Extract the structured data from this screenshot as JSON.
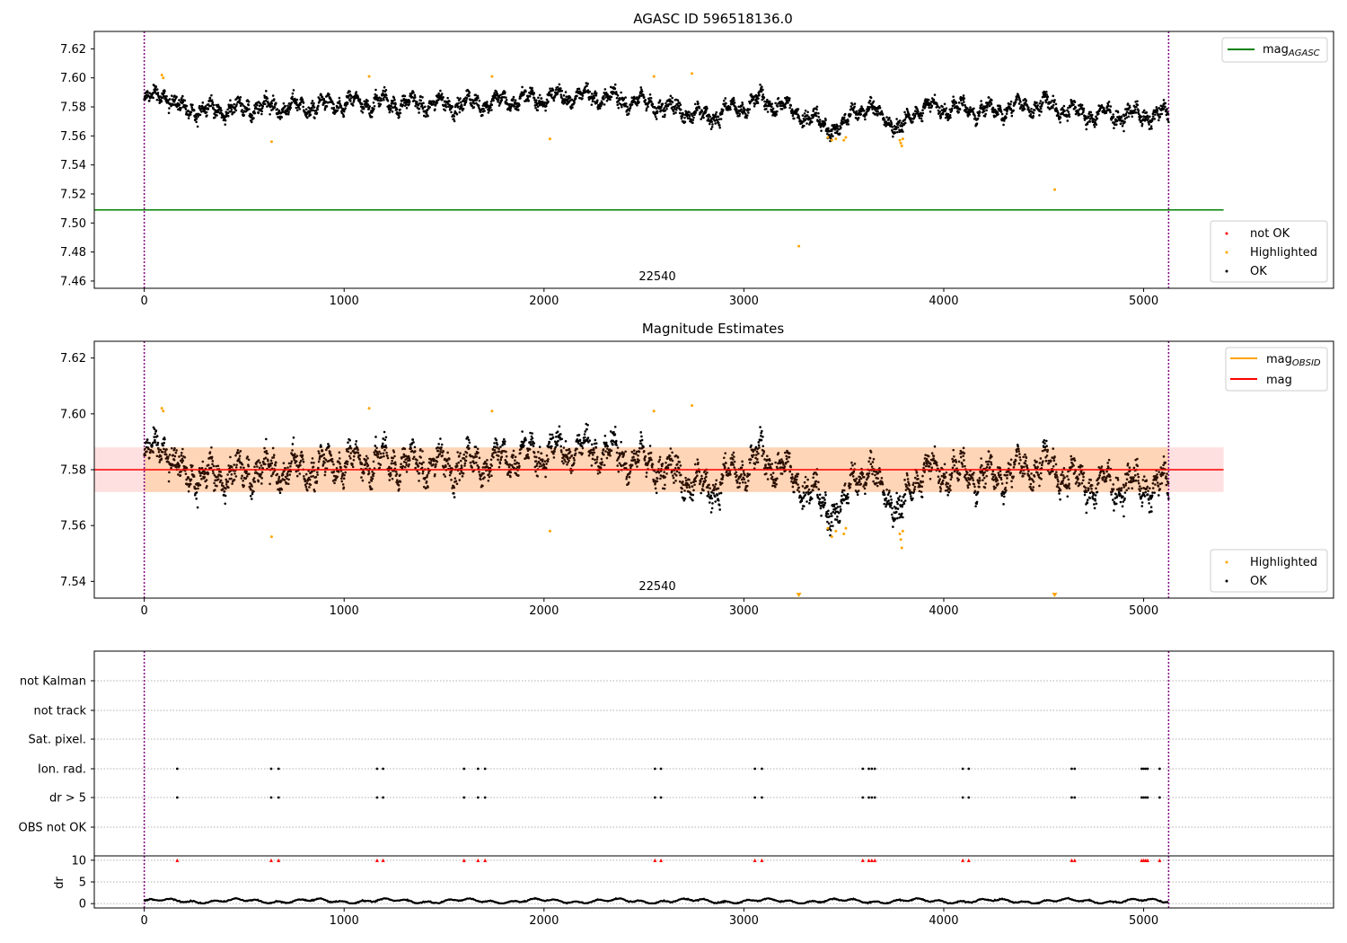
{
  "chart_data": [
    {
      "type": "scatter",
      "title": "AGASC ID 596518136.0",
      "xlim": [
        -250,
        5950
      ],
      "ylim": [
        7.455,
        7.632
      ],
      "x_ticks": [
        0,
        1000,
        2000,
        3000,
        4000,
        5000
      ],
      "y_ticks": [
        7.46,
        7.48,
        7.5,
        7.52,
        7.54,
        7.56,
        7.58,
        7.6,
        7.62
      ],
      "y_tick_labels": [
        "7.46",
        "7.48",
        "7.50",
        "7.52",
        "7.54",
        "7.56",
        "7.58",
        "7.60",
        "7.62"
      ],
      "vlines": [
        0,
        5125
      ],
      "hline": {
        "name": "mag_AGASC",
        "y": 7.509,
        "x_range": [
          -250,
          5400
        ],
        "color": "#008000"
      },
      "annotation": "22540",
      "line_legend": [
        {
          "label": "mag",
          "sub": "AGASC",
          "color": "#008000"
        }
      ],
      "marker_legend": [
        {
          "label": "not OK",
          "color": "#ff0000"
        },
        {
          "label": "Highlighted",
          "color": "#ffa500"
        },
        {
          "label": "OK",
          "color": "#000000"
        }
      ],
      "ok_series": {
        "name": "OK",
        "x_range": [
          0,
          5125
        ],
        "base": 7.58,
        "segments": [
          [
            0,
            7.583
          ],
          [
            100,
            7.59
          ],
          [
            180,
            7.578
          ],
          [
            400,
            7.578
          ],
          [
            600,
            7.58
          ],
          [
            800,
            7.58
          ],
          [
            1000,
            7.582
          ],
          [
            1200,
            7.583
          ],
          [
            1400,
            7.582
          ],
          [
            1600,
            7.582
          ],
          [
            1800,
            7.584
          ],
          [
            2000,
            7.586
          ],
          [
            2200,
            7.588
          ],
          [
            2500,
            7.583
          ],
          [
            2700,
            7.578
          ],
          [
            2800,
            7.573
          ],
          [
            3000,
            7.58
          ],
          [
            3100,
            7.585
          ],
          [
            3300,
            7.574
          ],
          [
            3400,
            7.568
          ],
          [
            3500,
            7.564
          ],
          [
            3550,
            7.58
          ],
          [
            3700,
            7.575
          ],
          [
            3780,
            7.562
          ],
          [
            3850,
            7.578
          ],
          [
            4000,
            7.58
          ],
          [
            4200,
            7.577
          ],
          [
            4500,
            7.582
          ],
          [
            4700,
            7.575
          ],
          [
            5125,
            7.574
          ]
        ],
        "spread": 0.008
      },
      "highlighted": [
        [
          88,
          7.602
        ],
        [
          95,
          7.6
        ],
        [
          637,
          7.556
        ],
        [
          1125,
          7.601
        ],
        [
          1740,
          7.601
        ],
        [
          2030,
          7.558
        ],
        [
          2550,
          7.601
        ],
        [
          2740,
          7.603
        ],
        [
          3275,
          7.484
        ],
        [
          3420,
          7.559
        ],
        [
          3440,
          7.557
        ],
        [
          3460,
          7.558
        ],
        [
          3500,
          7.557
        ],
        [
          3510,
          7.559
        ],
        [
          3780,
          7.557
        ],
        [
          3785,
          7.555
        ],
        [
          3790,
          7.553
        ],
        [
          3795,
          7.558
        ],
        [
          4555,
          7.523
        ]
      ]
    },
    {
      "type": "scatter",
      "title": "Magnitude Estimates",
      "xlim": [
        -250,
        5950
      ],
      "ylim": [
        7.534,
        7.626
      ],
      "x_ticks": [
        0,
        1000,
        2000,
        3000,
        4000,
        5000
      ],
      "y_ticks": [
        7.54,
        7.56,
        7.58,
        7.6,
        7.62
      ],
      "y_tick_labels": [
        "7.54",
        "7.56",
        "7.58",
        "7.60",
        "7.62"
      ],
      "vlines": [
        0,
        5125
      ],
      "mag": 7.58,
      "band": [
        7.572,
        7.588
      ],
      "annotation": "22540",
      "line_legend": [
        {
          "label": "mag",
          "sub": "OBSID",
          "color": "#ffa500"
        },
        {
          "label": "mag",
          "sub": "",
          "color": "#ff0000"
        }
      ],
      "marker_legend": [
        {
          "label": "Highlighted",
          "color": "#ffa500"
        },
        {
          "label": "OK",
          "color": "#000000"
        }
      ],
      "highlighted": [
        [
          88,
          7.602
        ],
        [
          95,
          7.601
        ],
        [
          637,
          7.556
        ],
        [
          1125,
          7.602
        ],
        [
          1740,
          7.601
        ],
        [
          2030,
          7.558
        ],
        [
          2550,
          7.601
        ],
        [
          2740,
          7.603
        ],
        [
          3420,
          7.559
        ],
        [
          3440,
          7.556
        ],
        [
          3460,
          7.558
        ],
        [
          3500,
          7.557
        ],
        [
          3510,
          7.559
        ],
        [
          3780,
          7.557
        ],
        [
          3785,
          7.555
        ],
        [
          3790,
          7.552
        ],
        [
          3795,
          7.558
        ]
      ],
      "offscale_markers": [
        3275,
        4555
      ]
    },
    {
      "type": "scatter",
      "title": "",
      "xlim": [
        -250,
        5950
      ],
      "x_ticks": [
        0,
        1000,
        2000,
        3000,
        4000,
        5000
      ],
      "vlines": [
        0,
        5125
      ],
      "flag_categories": [
        "not Kalman",
        "not track",
        "Sat. pixel.",
        "Ion. rad.",
        "dr > 5",
        "OBS not OK"
      ],
      "flag_x": [
        165,
        635,
        672,
        1165,
        1195,
        1600,
        1670,
        1705,
        2555,
        2585,
        3055,
        3090,
        3595,
        3625,
        3640,
        3655,
        4095,
        4125,
        4640,
        4655,
        4990,
        5000,
        5010,
        5020,
        5080
      ],
      "flags": {
        "Ion. rad.": "flag_x",
        "dr > 5": "flag_x"
      },
      "dr": {
        "ylabel": "dr",
        "ylim": [
          -1,
          11
        ],
        "y_ticks": [
          0,
          5,
          10
        ],
        "y_tick_labels": [
          "0",
          "5",
          "10"
        ],
        "offscale_markers_at": 10,
        "typical": 0.6
      }
    }
  ]
}
